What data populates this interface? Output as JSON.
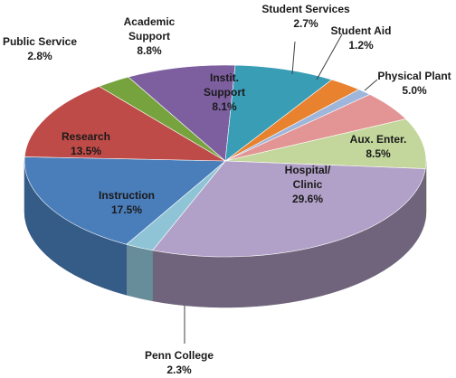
{
  "chart_data": {
    "type": "pie",
    "title": "",
    "slices": [
      {
        "name": "Student Services",
        "label": [
          "Student Services"
        ],
        "value_label": "2.7%",
        "value": 2.7,
        "color": "#e8822f",
        "placement": "outside"
      },
      {
        "name": "Student Aid",
        "label": [
          "Student Aid"
        ],
        "value_label": "1.2%",
        "value": 1.2,
        "color": "#9eb6dc",
        "placement": "outside"
      },
      {
        "name": "Physical Plant",
        "label": [
          "Physical Plant"
        ],
        "value_label": "5.0%",
        "value": 5.0,
        "color": "#e29594",
        "placement": "outside"
      },
      {
        "name": "Aux. Enter.",
        "label": [
          "Aux. Enter."
        ],
        "value_label": "8.5%",
        "value": 8.5,
        "color": "#c3d69b",
        "placement": "inside"
      },
      {
        "name": "Hospital/ Clinic",
        "label": [
          "Hospital/",
          "Clinic"
        ],
        "value_label": "29.6%",
        "value": 29.6,
        "color": "#b1a0c7",
        "placement": "inside"
      },
      {
        "name": "Penn College",
        "label": [
          "Penn College"
        ],
        "value_label": "2.3%",
        "value": 2.3,
        "color": "#8fc4d6",
        "placement": "outside"
      },
      {
        "name": "Instruction",
        "label": [
          "Instruction"
        ],
        "value_label": "17.5%",
        "value": 17.5,
        "color": "#4a7ebb",
        "placement": "inside"
      },
      {
        "name": "Research",
        "label": [
          "Research"
        ],
        "value_label": "13.5%",
        "value": 13.5,
        "color": "#be4b48",
        "placement": "inside"
      },
      {
        "name": "Public Service",
        "label": [
          "Public Service"
        ],
        "value_label": "2.8%",
        "value": 2.8,
        "color": "#77a33f",
        "placement": "outside"
      },
      {
        "name": "Academic Support",
        "label": [
          "Academic",
          "Support"
        ],
        "value_label": "8.8%",
        "value": 8.8,
        "color": "#7d5fa0",
        "placement": "outside"
      },
      {
        "name": "Instit. Support",
        "label": [
          "Instit.",
          "Support"
        ],
        "value_label": "8.1%",
        "value": 8.1,
        "color": "#3a9db6",
        "placement": "inside"
      }
    ]
  }
}
